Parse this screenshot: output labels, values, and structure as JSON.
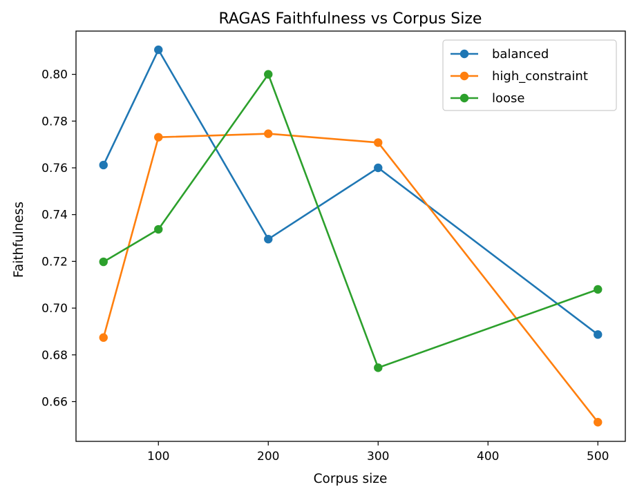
{
  "chart_data": {
    "type": "line",
    "title": "RAGAS Faithfulness vs Corpus Size",
    "xlabel": "Corpus size",
    "ylabel": "Faithfulness",
    "xlim": [
      25,
      525
    ],
    "ylim": [
      0.643,
      0.8185
    ],
    "xticks": [
      100,
      200,
      300,
      400,
      500
    ],
    "yticks": [
      0.66,
      0.68,
      0.7,
      0.72,
      0.74,
      0.76,
      0.78,
      0.8
    ],
    "ytick_labels": [
      "0.66",
      "0.68",
      "0.70",
      "0.72",
      "0.74",
      "0.76",
      "0.78",
      "0.80"
    ],
    "grid": false,
    "legend_position": "top-right",
    "x": [
      50,
      100,
      200,
      300,
      500
    ],
    "series": [
      {
        "name": "balanced",
        "color": "#1f77b4",
        "values": [
          0.7612,
          0.8105,
          0.7295,
          0.76,
          0.6887
        ]
      },
      {
        "name": "high_constraint",
        "color": "#ff7f0e",
        "values": [
          0.6874,
          0.7731,
          0.7746,
          0.7708,
          0.6512
        ]
      },
      {
        "name": "loose",
        "color": "#2ca02c",
        "values": [
          0.7198,
          0.7337,
          0.8,
          0.6745,
          0.708
        ]
      }
    ]
  }
}
